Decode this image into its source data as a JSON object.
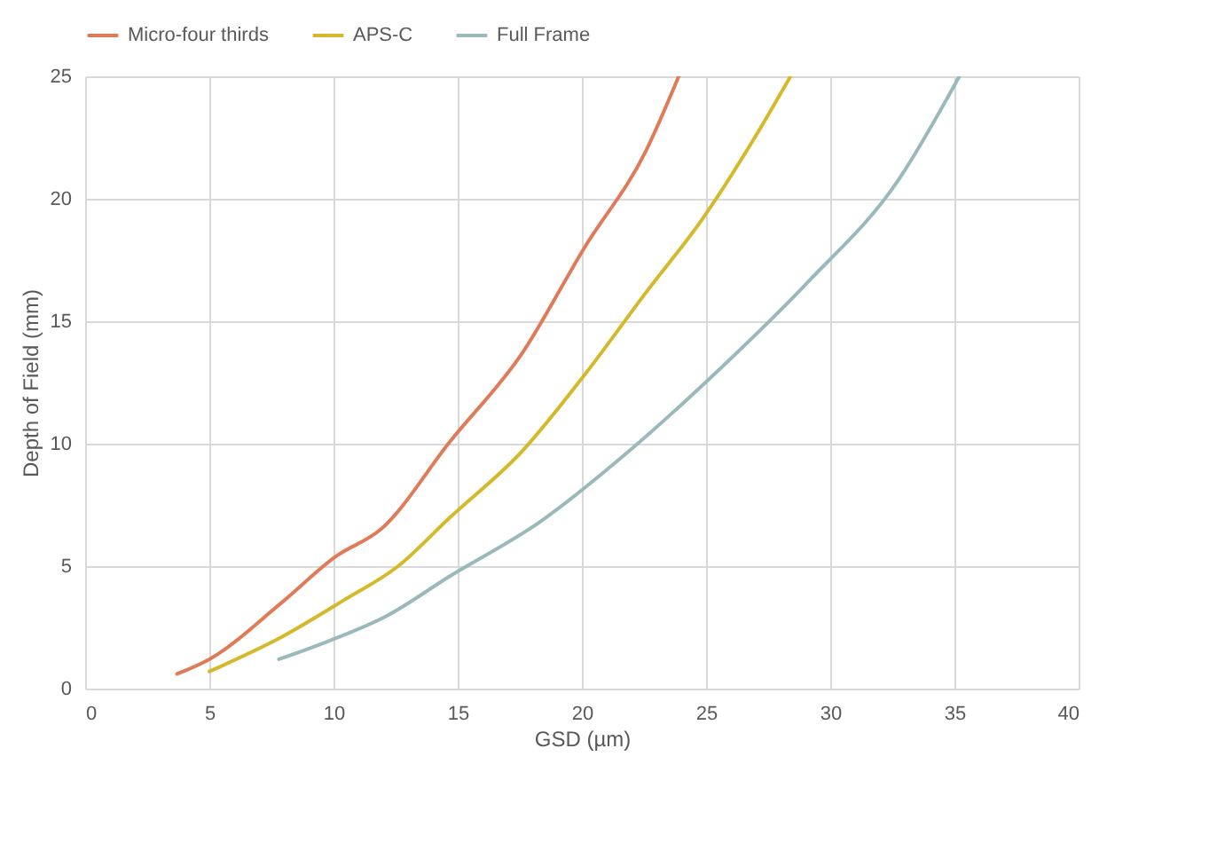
{
  "chart_data": {
    "type": "line",
    "xlabel": "GSD (µm)",
    "ylabel": "Depth of Field (mm)",
    "xlim": [
      0,
      40
    ],
    "xticks": [
      0,
      5,
      10,
      15,
      20,
      25,
      30,
      35,
      40
    ],
    "ylim": [
      0,
      25
    ],
    "yticks": [
      0,
      5,
      10,
      15,
      20,
      25
    ],
    "grid": true,
    "legend": "top",
    "marker": "none",
    "line_style": "solid",
    "series": [
      {
        "name": "Micro-four thirds",
        "color": "#e07b5a",
        "x": [
          3.7,
          5.0,
          7.9,
          10.1,
          11.9,
          14.7,
          17.6,
          20.1,
          22.6,
          23.9
        ],
        "values": [
          0.6,
          1.2,
          3.5,
          5.4,
          6.5,
          10.1,
          13.7,
          18.0,
          22.0,
          25.0
        ]
      },
      {
        "name": "APS-C",
        "color": "#d4b92a",
        "x": [
          5.0,
          7.9,
          10.4,
          12.6,
          14.7,
          17.6,
          20.1,
          22.6,
          24.8,
          26.9,
          28.4
        ],
        "values": [
          0.7,
          2.1,
          3.6,
          5.0,
          7.0,
          9.7,
          12.8,
          16.2,
          19.1,
          22.4,
          25.0
        ]
      },
      {
        "name": "Full Frame",
        "color": "#9ab9ba",
        "x": [
          7.8,
          9.7,
          12.2,
          14.7,
          18.3,
          21.9,
          25.5,
          29.1,
          32.7,
          35.2
        ],
        "values": [
          1.2,
          1.9,
          3.0,
          4.6,
          6.8,
          9.7,
          13.0,
          16.6,
          20.7,
          25.0
        ]
      }
    ]
  }
}
